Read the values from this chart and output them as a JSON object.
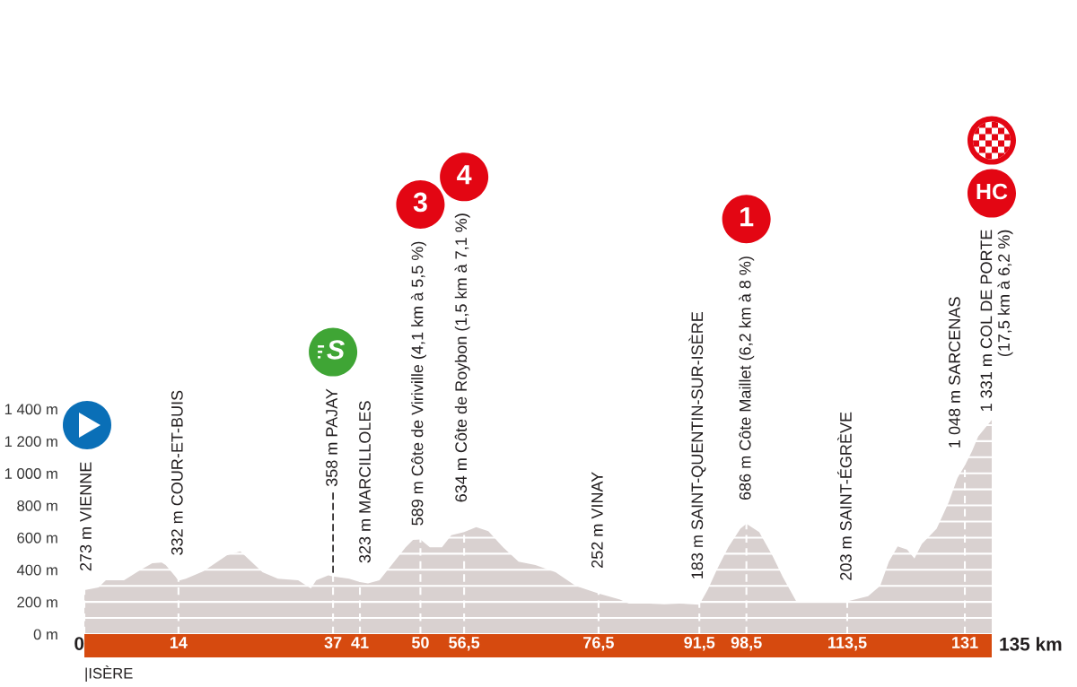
{
  "chart_data": {
    "type": "area",
    "color": "#d9d1d0",
    "x": [
      0,
      2.1,
      3.2,
      5.9,
      8.4,
      10.1,
      11.5,
      12.1,
      13.5,
      14,
      15.1,
      17.7,
      21.2,
      23.2,
      26.5,
      28.8,
      31.8,
      33.7,
      34.5,
      36.3,
      37,
      39.4,
      41,
      42.2,
      43.9,
      46,
      47.8,
      48.9,
      50,
      51.4,
      53.2,
      54.6,
      56.5,
      58.3,
      60.1,
      62.3,
      64.6,
      67.1,
      70.1,
      73.1,
      76.5,
      79.7,
      81,
      84,
      86.3,
      88.5,
      91.5,
      92.8,
      94.1,
      95.8,
      97.6,
      98.5,
      100.4,
      102.4,
      103.9,
      105.9,
      107.9,
      110.5,
      113.5,
      116.6,
      118.4,
      119.7,
      121,
      122.4,
      123.5,
      124.6,
      126.8,
      128.6,
      129.9,
      131,
      132.1,
      133,
      135
    ],
    "values": [
      273,
      290,
      335,
      335,
      400,
      440,
      445,
      430,
      360,
      332,
      345,
      390,
      490,
      515,
      385,
      345,
      335,
      285,
      335,
      365,
      358,
      345,
      323,
      315,
      335,
      445,
      540,
      585,
      589,
      540,
      540,
      615,
      634,
      665,
      640,
      540,
      450,
      430,
      385,
      300,
      252,
      215,
      190,
      190,
      185,
      190,
      183,
      280,
      400,
      540,
      655,
      686,
      635,
      485,
      355,
      205,
      195,
      195,
      203,
      235,
      300,
      450,
      545,
      525,
      470,
      560,
      655,
      820,
      970,
      1048,
      1140,
      1230,
      1331
    ],
    "xlim": [
      0,
      135
    ],
    "xticks": [
      0,
      14,
      37,
      41,
      50,
      {
        "value": 56.5,
        "label": "56,5"
      },
      {
        "value": 76.5,
        "label": "76,5"
      },
      {
        "value": 91.5,
        "label": "91,5"
      },
      {
        "value": 98.5,
        "label": "98,5"
      },
      {
        "value": 113.5,
        "label": "113,5"
      },
      131
    ],
    "ylim": [
      0,
      1400
    ],
    "yticks": [
      {
        "value": 0,
        "label": "0 m"
      },
      {
        "value": 100,
        "label": null
      },
      {
        "value": 200,
        "label": "200 m"
      },
      {
        "value": 300,
        "label": null
      },
      {
        "value": 400,
        "label": "400 m"
      },
      {
        "value": 500,
        "label": null
      },
      {
        "value": 600,
        "label": "600 m"
      },
      {
        "value": 700,
        "label": null
      },
      {
        "value": 800,
        "label": "800 m"
      },
      {
        "value": 900,
        "label": null
      },
      {
        "value": 1000,
        "label": "1 000 m"
      },
      {
        "value": 1100,
        "label": null
      },
      {
        "value": 1200,
        "label": "1 200 m"
      },
      {
        "value": 1300,
        "label": null
      },
      {
        "value": 1400,
        "label": "1 400 m"
      }
    ],
    "grid": true,
    "annotations": [
      {
        "text": "273 m VIENNE",
        "x": 0,
        "y": 273
      },
      {
        "text": "332 m COUR-ET-BUIS",
        "x": 14,
        "y": 332
      },
      {
        "text": "358 m PAJAY",
        "x": 37,
        "y": 358
      },
      {
        "text": "323 m MARCILLOLES",
        "x": 41,
        "y": 323
      },
      {
        "text": "589 m Côte de Viriville (4,1 km à 5,5 %)",
        "x": 50,
        "y": 589
      },
      {
        "text": "634 m Côte de Roybon (1,5 km à 7,1 %)",
        "x": 56.5,
        "y": 634
      },
      {
        "text": "252 m VINAY",
        "x": 76.5,
        "y": 252
      },
      {
        "text": "183 m SAINT-QUENTIN-SUR-ISÈRE",
        "x": 91.5,
        "y": 183
      },
      {
        "text": "686 m Côte Maillet (6,2 km à 8 %)",
        "x": 98.5,
        "y": 686
      },
      {
        "text": "203 m SAINT-ÉGRÈVE",
        "x": 113.5,
        "y": 203
      },
      {
        "text": "1 048 m SARCENAS",
        "x": 131,
        "y": 1048
      },
      {
        "text": "1 331 m COL DE PORTE\n(17,5 km à 6,2 %)",
        "x": 135,
        "y": 1331
      },
      "S",
      "3",
      "4",
      "1",
      "HC",
      "|ISÈRE",
      {
        "text": "135 km",
        "x": 135,
        "y": 0
      }
    ]
  }
}
